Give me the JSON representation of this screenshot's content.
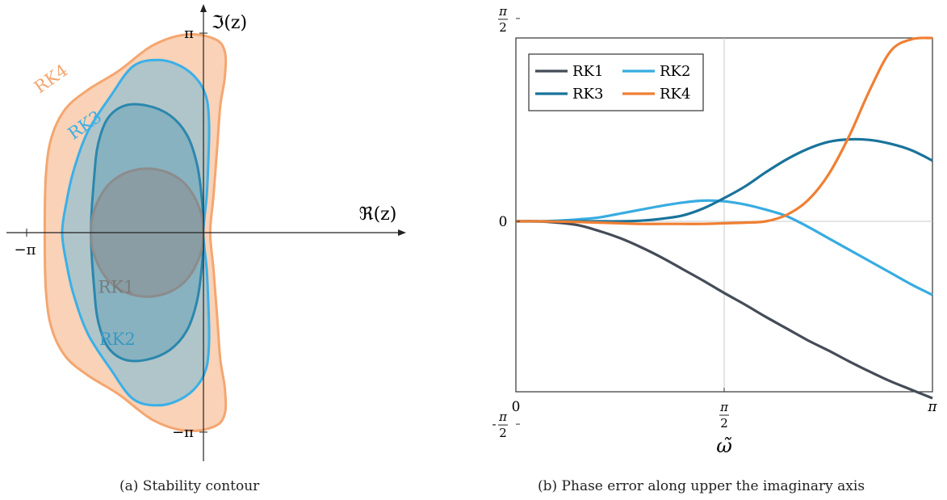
{
  "chart_data": [
    {
      "type": "area",
      "caption": "(a)  Stability contour",
      "xlabel": "ℜ(z)",
      "ylabel": "ℑ(z)",
      "tick_labels": {
        "x_neg": "−π",
        "y_pos": "π",
        "y_neg": "−π"
      },
      "xlim": [
        -3.5,
        3.6
      ],
      "ylim": [
        -3.6,
        3.6
      ],
      "grid": false,
      "legend": "none",
      "regions": [
        {
          "name": "RK4",
          "color": "#f4a66f",
          "fill_opacity": 0.5,
          "label_angle": -35,
          "label_at": [
            -2.65,
            2.35
          ],
          "boundary": [
            [
              0.12,
              0.0
            ],
            [
              0.18,
              0.6
            ],
            [
              0.25,
              1.4
            ],
            [
              0.3,
              2.0
            ],
            [
              0.38,
              2.45
            ],
            [
              0.38,
              2.85
            ],
            [
              0.2,
              3.05
            ],
            [
              -0.3,
              3.12
            ],
            [
              -0.9,
              2.95
            ],
            [
              -1.5,
              2.55
            ],
            [
              -2.05,
              2.25
            ],
            [
              -2.45,
              1.95
            ],
            [
              -2.7,
              1.5
            ],
            [
              -2.8,
              0.9
            ],
            [
              -2.82,
              0.0
            ],
            [
              -2.8,
              -0.9
            ],
            [
              -2.7,
              -1.5
            ],
            [
              -2.45,
              -1.95
            ],
            [
              -2.05,
              -2.25
            ],
            [
              -1.5,
              -2.55
            ],
            [
              -0.9,
              -2.95
            ],
            [
              -0.3,
              -3.12
            ],
            [
              0.2,
              -3.05
            ],
            [
              0.38,
              -2.85
            ],
            [
              0.38,
              -2.45
            ],
            [
              0.3,
              -2.0
            ],
            [
              0.25,
              -1.4
            ],
            [
              0.18,
              -0.6
            ]
          ]
        },
        {
          "name": "RK3",
          "color": "#3ab0e8",
          "fill_opacity": 0.38,
          "label_angle": -35,
          "label_at": [
            -2.05,
            1.62
          ],
          "boundary": [
            [
              0.0,
              0.0
            ],
            [
              0.06,
              0.6
            ],
            [
              0.09,
              1.2
            ],
            [
              0.1,
              1.7
            ],
            [
              0.06,
              2.1
            ],
            [
              -0.1,
              2.4
            ],
            [
              -0.4,
              2.62
            ],
            [
              -0.8,
              2.72
            ],
            [
              -1.25,
              2.62
            ],
            [
              -1.65,
              2.15
            ],
            [
              -2.05,
              1.6
            ],
            [
              -2.3,
              1.0
            ],
            [
              -2.43,
              0.5
            ],
            [
              -2.51,
              0.0
            ],
            [
              -2.43,
              -0.5
            ],
            [
              -2.3,
              -1.0
            ],
            [
              -2.05,
              -1.6
            ],
            [
              -1.65,
              -2.15
            ],
            [
              -1.25,
              -2.62
            ],
            [
              -0.8,
              -2.72
            ],
            [
              -0.4,
              -2.62
            ],
            [
              -0.1,
              -2.4
            ],
            [
              0.06,
              -2.1
            ],
            [
              0.1,
              -1.7
            ],
            [
              0.09,
              -1.2
            ],
            [
              0.06,
              -0.6
            ]
          ]
        },
        {
          "name": "RK2",
          "color": "#2b87ad",
          "fill_opacity": 0.3,
          "label_angle": 0,
          "label_at": [
            -1.53,
            -1.77
          ],
          "boundary": [
            [
              0.0,
              0.0
            ],
            [
              -0.03,
              0.55
            ],
            [
              -0.12,
              1.1
            ],
            [
              -0.3,
              1.55
            ],
            [
              -0.6,
              1.85
            ],
            [
              -1.0,
              2.0
            ],
            [
              -1.4,
              2.0
            ],
            [
              -1.7,
              1.8
            ],
            [
              -1.87,
              1.4
            ],
            [
              -1.94,
              0.9
            ],
            [
              -2.0,
              0.0
            ],
            [
              -1.94,
              -0.9
            ],
            [
              -1.87,
              -1.4
            ],
            [
              -1.7,
              -1.8
            ],
            [
              -1.4,
              -2.0
            ],
            [
              -1.0,
              -2.0
            ],
            [
              -0.6,
              -1.85
            ],
            [
              -0.3,
              -1.55
            ],
            [
              -0.12,
              -1.1
            ],
            [
              -0.03,
              -0.55
            ]
          ]
        },
        {
          "name": "RK1",
          "color": "#8c8c8c",
          "fill_opacity": 0.55,
          "label_angle": 0,
          "label_at": [
            -1.55,
            -0.95
          ],
          "boundary": [
            [
              0.0,
              0.0
            ],
            [
              -0.04,
              0.29
            ],
            [
              -0.16,
              0.56
            ],
            [
              -0.34,
              0.78
            ],
            [
              -0.59,
              0.93
            ],
            [
              -0.87,
              1.0
            ],
            [
              -1.13,
              1.0
            ],
            [
              -1.41,
              0.93
            ],
            [
              -1.66,
              0.78
            ],
            [
              -1.84,
              0.56
            ],
            [
              -1.96,
              0.29
            ],
            [
              -2.0,
              0.0
            ],
            [
              -1.96,
              -0.29
            ],
            [
              -1.84,
              -0.56
            ],
            [
              -1.66,
              -0.78
            ],
            [
              -1.41,
              -0.93
            ],
            [
              -1.13,
              -1.0
            ],
            [
              -0.87,
              -1.0
            ],
            [
              -0.59,
              -0.93
            ],
            [
              -0.34,
              -0.78
            ],
            [
              -0.16,
              -0.56
            ],
            [
              -0.04,
              -0.29
            ]
          ]
        }
      ]
    },
    {
      "type": "line",
      "caption": "(b)  Phase error along upper the imaginary axis",
      "xlabel": "ω̃",
      "ylabel": "",
      "xlim": [
        0,
        3.14159
      ],
      "ylim": [
        -1.32,
        1.42
      ],
      "x_ticks": [
        {
          "value": 0,
          "label": "0"
        },
        {
          "value": 1.5708,
          "label": "π/2"
        },
        {
          "value": 3.14159,
          "label": "π"
        }
      ],
      "y_ticks": [
        {
          "value": 1.5708,
          "label": "π/2",
          "sign": ""
        },
        {
          "value": 0,
          "label": "0",
          "sign": ""
        },
        {
          "value": -1.5708,
          "label": "π/2",
          "sign": "-"
        }
      ],
      "grid": true,
      "legend": "top-left",
      "series": [
        {
          "name": "RK1",
          "color": "#454c58",
          "x": [
            0,
            0.1571,
            0.3142,
            0.4712,
            0.6283,
            0.7854,
            0.9425,
            1.0996,
            1.2566,
            1.4137,
            1.5708,
            1.7279,
            1.885,
            2.042,
            2.1991,
            2.3562,
            2.5133,
            2.6704,
            2.8274,
            2.9845,
            3.1416
          ],
          "y": [
            0,
            0.0,
            -0.01,
            -0.03,
            -0.075,
            -0.13,
            -0.2,
            -0.28,
            -0.37,
            -0.46,
            -0.555,
            -0.645,
            -0.74,
            -0.83,
            -0.92,
            -1.0,
            -1.085,
            -1.165,
            -1.24,
            -1.305,
            -1.37
          ]
        },
        {
          "name": "RK2",
          "color": "#38ace0",
          "x": [
            0,
            0.1571,
            0.3142,
            0.4712,
            0.6283,
            0.7854,
            0.9425,
            1.0996,
            1.2566,
            1.4137,
            1.5708,
            1.7279,
            1.885,
            2.042,
            2.1991,
            2.3562,
            2.5133,
            2.6704,
            2.8274,
            2.9845,
            3.1416
          ],
          "y": [
            0,
            0.0,
            0.005,
            0.015,
            0.03,
            0.06,
            0.09,
            0.12,
            0.145,
            0.16,
            0.155,
            0.13,
            0.09,
            0.04,
            -0.04,
            -0.13,
            -0.22,
            -0.31,
            -0.4,
            -0.49,
            -0.57
          ]
        },
        {
          "name": "RK3",
          "color": "#19739b",
          "x": [
            0,
            0.1571,
            0.3142,
            0.4712,
            0.6283,
            0.7854,
            0.9425,
            1.0996,
            1.2566,
            1.4137,
            1.5708,
            1.7279,
            1.885,
            2.042,
            2.1991,
            2.3562,
            2.5133,
            2.6704,
            2.8274,
            2.9845,
            3.1416
          ],
          "y": [
            0,
            0.0,
            0.0,
            0.0,
            0.0,
            0.0,
            0.005,
            0.02,
            0.045,
            0.1,
            0.18,
            0.27,
            0.38,
            0.48,
            0.56,
            0.615,
            0.635,
            0.63,
            0.6,
            0.55,
            0.47
          ]
        },
        {
          "name": "RK4",
          "color": "#f07f33",
          "x": [
            0,
            0.1571,
            0.3142,
            0.4712,
            0.6283,
            0.7854,
            0.9425,
            1.0996,
            1.2566,
            1.4137,
            1.5708,
            1.7279,
            1.885,
            2.042,
            2.1991,
            2.3562,
            2.5133,
            2.6704,
            2.8274,
            2.9845,
            3.1416
          ],
          "y": [
            0,
            0.0,
            -0.002,
            -0.005,
            -0.01,
            -0.015,
            -0.02,
            -0.02,
            -0.02,
            -0.02,
            -0.015,
            -0.01,
            0.0,
            0.05,
            0.16,
            0.36,
            0.66,
            1.02,
            1.32,
            1.41,
            1.42
          ]
        }
      ]
    }
  ]
}
